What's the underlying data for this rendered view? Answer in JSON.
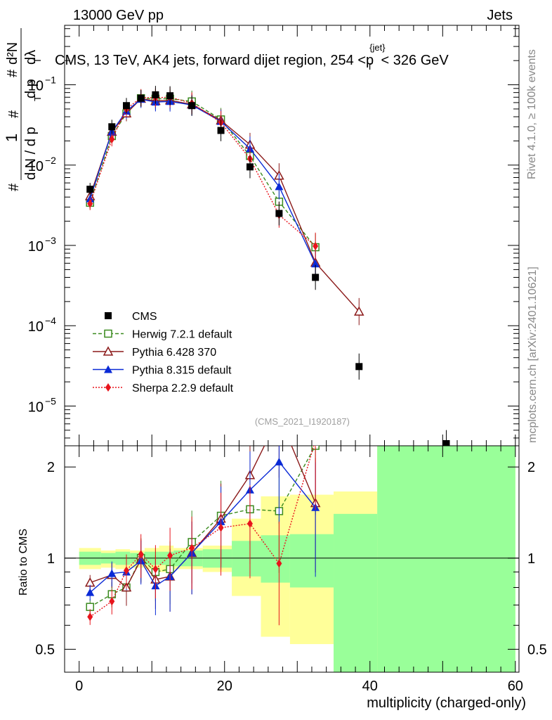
{
  "header": {
    "energy_label": "13000 GeV pp",
    "category_label": "Jets"
  },
  "side_text": {
    "rivet": "Rivet 4.1.0, ≥ 100k events",
    "source": "mcplots.cern.ch [arXiv:2401.10621]"
  },
  "chart_data": [
    {
      "type": "line",
      "id": "main",
      "title": "CMS, 13 TeV, AK4 jets, forward dijet region, 254 <p_T^{jet}< 326 GeV",
      "title_parts": {
        "prefix": "CMS, 13 TeV, AK4 jets, forward dijet region, 254 <p",
        "sup": "{jet}",
        "sub": "T",
        "suffix": "< 326 GeV"
      },
      "ylabel": "1/(dN/dp_T) d²N/(dp_T dλ)",
      "ylabel_parts": {
        "one": "1",
        "hash": "#",
        "dN": "d N / d p",
        "T": "T",
        "d2N": "d²N",
        "dpdl": "d p",
        "dl": "dλ"
      },
      "yscale": "log",
      "ylim": [
        3.2e-06,
        0.55
      ],
      "xlim": [
        -2,
        60.5
      ],
      "ytick_labels": [
        {
          "value": 1e-05,
          "base": "10",
          "exp": "−5"
        },
        {
          "value": 0.0001,
          "base": "10",
          "exp": "−4"
        },
        {
          "value": 0.001,
          "base": "10",
          "exp": "−3"
        },
        {
          "value": 0.01,
          "base": "10",
          "exp": "−2"
        },
        {
          "value": 0.1,
          "base": "10",
          "exp": "−1"
        }
      ],
      "watermark": "(CMS_2021_I1920187)",
      "series": [
        {
          "name": "CMS",
          "color": "#000000",
          "marker": "square-filled",
          "linestyle": "none",
          "x": [
            1.5,
            4.5,
            6.5,
            8.5,
            10.5,
            12.5,
            15.5,
            19.5,
            23.5,
            27.5,
            32.5,
            38.5,
            50.5
          ],
          "y": [
            0.005,
            0.03,
            0.055,
            0.068,
            0.075,
            0.073,
            0.055,
            0.027,
            0.0095,
            0.0025,
            0.0004,
            3.1e-05,
            3.4e-06
          ]
        },
        {
          "name": "Herwig 7.2.1 default",
          "color": "#3a8a1f",
          "marker": "square-open",
          "linestyle": "dashed",
          "x": [
            1.5,
            4.5,
            6.5,
            8.5,
            10.5,
            12.5,
            15.5,
            19.5,
            23.5,
            27.5,
            32.5
          ],
          "y": [
            0.0034,
            0.023,
            0.044,
            0.068,
            0.067,
            0.067,
            0.062,
            0.037,
            0.013,
            0.0035,
            0.00095
          ]
        },
        {
          "name": "Pythia 6.428 370",
          "color": "#8b1a1a",
          "marker": "triangle-open",
          "linestyle": "solid",
          "x": [
            1.5,
            4.5,
            6.5,
            8.5,
            10.5,
            12.5,
            15.5,
            19.5,
            23.5,
            27.5,
            32.5,
            38.5
          ],
          "y": [
            0.0041,
            0.026,
            0.044,
            0.067,
            0.063,
            0.064,
            0.057,
            0.036,
            0.018,
            0.0074,
            0.00061,
            0.00015
          ]
        },
        {
          "name": "Pythia 8.315 default",
          "color": "#0a2ad6",
          "marker": "triangle-filled",
          "linestyle": "solid",
          "x": [
            1.5,
            4.5,
            6.5,
            8.5,
            10.5,
            12.5,
            15.5,
            19.5,
            23.5,
            27.5,
            32.5
          ],
          "y": [
            0.0038,
            0.026,
            0.047,
            0.066,
            0.061,
            0.062,
            0.056,
            0.035,
            0.016,
            0.0054,
            0.00059
          ]
        },
        {
          "name": "Sherpa 2.2.9 default",
          "color": "#e8141c",
          "marker": "diamond-filled",
          "linestyle": "dotted",
          "x": [
            1.5,
            4.5,
            6.5,
            8.5,
            10.5,
            12.5,
            15.5,
            19.5,
            23.5,
            27.5,
            32.5
          ],
          "y": [
            0.0033,
            0.021,
            0.05,
            0.069,
            0.069,
            0.07,
            0.059,
            0.034,
            0.012,
            0.0024,
            0.00098
          ]
        }
      ]
    },
    {
      "type": "line",
      "id": "ratio",
      "ylabel": "Ratio to CMS",
      "xlabel": "multiplicity (charged-only)",
      "yscale": "log",
      "ylim": [
        0.42,
        2.35
      ],
      "xlim": [
        -2,
        60.5
      ],
      "xticks": [
        0,
        20,
        40,
        60
      ],
      "xtick_labels": [
        "0",
        "20",
        "40",
        "60"
      ],
      "ytick_labels": [
        {
          "value": 0.5,
          "label": "0.5"
        },
        {
          "value": 1,
          "label": "1"
        },
        {
          "value": 2,
          "label": "2"
        }
      ],
      "uncertainty_bands": {
        "bins": [
          [
            0,
            3
          ],
          [
            3,
            5
          ],
          [
            5,
            7
          ],
          [
            7,
            9
          ],
          [
            9,
            11
          ],
          [
            11,
            13
          ],
          [
            13,
            17
          ],
          [
            17,
            21
          ],
          [
            21,
            25
          ],
          [
            25,
            29
          ],
          [
            29,
            35
          ],
          [
            35,
            41
          ],
          [
            41,
            60
          ]
        ],
        "stat_low": [
          0.95,
          0.96,
          0.95,
          0.96,
          0.95,
          0.95,
          0.94,
          0.93,
          0.87,
          0.83,
          0.8,
          0.42,
          0.42
        ],
        "stat_high": [
          1.05,
          1.04,
          1.05,
          1.04,
          1.05,
          1.05,
          1.06,
          1.07,
          1.14,
          1.19,
          1.2,
          1.4,
          2.35
        ],
        "total_low": [
          0.92,
          0.93,
          0.92,
          0.93,
          0.92,
          0.9,
          0.92,
          0.9,
          0.75,
          0.55,
          0.52,
          0.42,
          0.42
        ],
        "total_high": [
          1.08,
          1.06,
          1.07,
          1.06,
          1.08,
          1.1,
          1.08,
          1.1,
          1.35,
          1.6,
          1.62,
          1.66,
          2.35
        ]
      },
      "series": [
        {
          "name": "Herwig 7.2.1 default",
          "color": "#3a8a1f",
          "marker": "square-open",
          "linestyle": "dashed",
          "x": [
            1.5,
            4.5,
            6.5,
            8.5,
            10.5,
            12.5,
            15.5,
            19.5,
            23.5,
            27.5,
            32.5
          ],
          "y": [
            0.69,
            0.76,
            0.8,
            1.0,
            0.9,
            0.92,
            1.13,
            1.38,
            1.45,
            1.43,
            2.35
          ]
        },
        {
          "name": "Pythia 6.428 370",
          "color": "#8b1a1a",
          "marker": "triangle-open",
          "linestyle": "solid",
          "x": [
            1.5,
            4.5,
            6.5,
            8.5,
            10.5,
            12.5,
            15.5,
            19.5,
            23.5,
            27.5,
            32.5
          ],
          "y": [
            0.83,
            0.88,
            0.8,
            0.99,
            0.85,
            0.87,
            1.04,
            1.35,
            1.88,
            2.95,
            1.52
          ]
        },
        {
          "name": "Pythia 8.315 default",
          "color": "#0a2ad6",
          "marker": "triangle-filled",
          "linestyle": "solid",
          "x": [
            1.5,
            4.5,
            6.5,
            8.5,
            10.5,
            12.5,
            15.5,
            19.5,
            23.5,
            27.5,
            32.5
          ],
          "y": [
            0.77,
            0.89,
            0.9,
            0.98,
            0.81,
            0.87,
            1.04,
            1.32,
            1.68,
            2.08,
            1.47
          ]
        },
        {
          "name": "Sherpa 2.2.9 default",
          "color": "#e8141c",
          "marker": "diamond-filled",
          "linestyle": "dotted",
          "x": [
            1.5,
            4.5,
            6.5,
            8.5,
            10.5,
            12.5,
            15.5,
            19.5,
            23.5,
            27.5,
            32.5
          ],
          "y": [
            0.64,
            0.72,
            0.91,
            1.03,
            0.92,
            1.02,
            1.08,
            1.26,
            1.3,
            0.96,
            2.45
          ]
        }
      ]
    }
  ]
}
